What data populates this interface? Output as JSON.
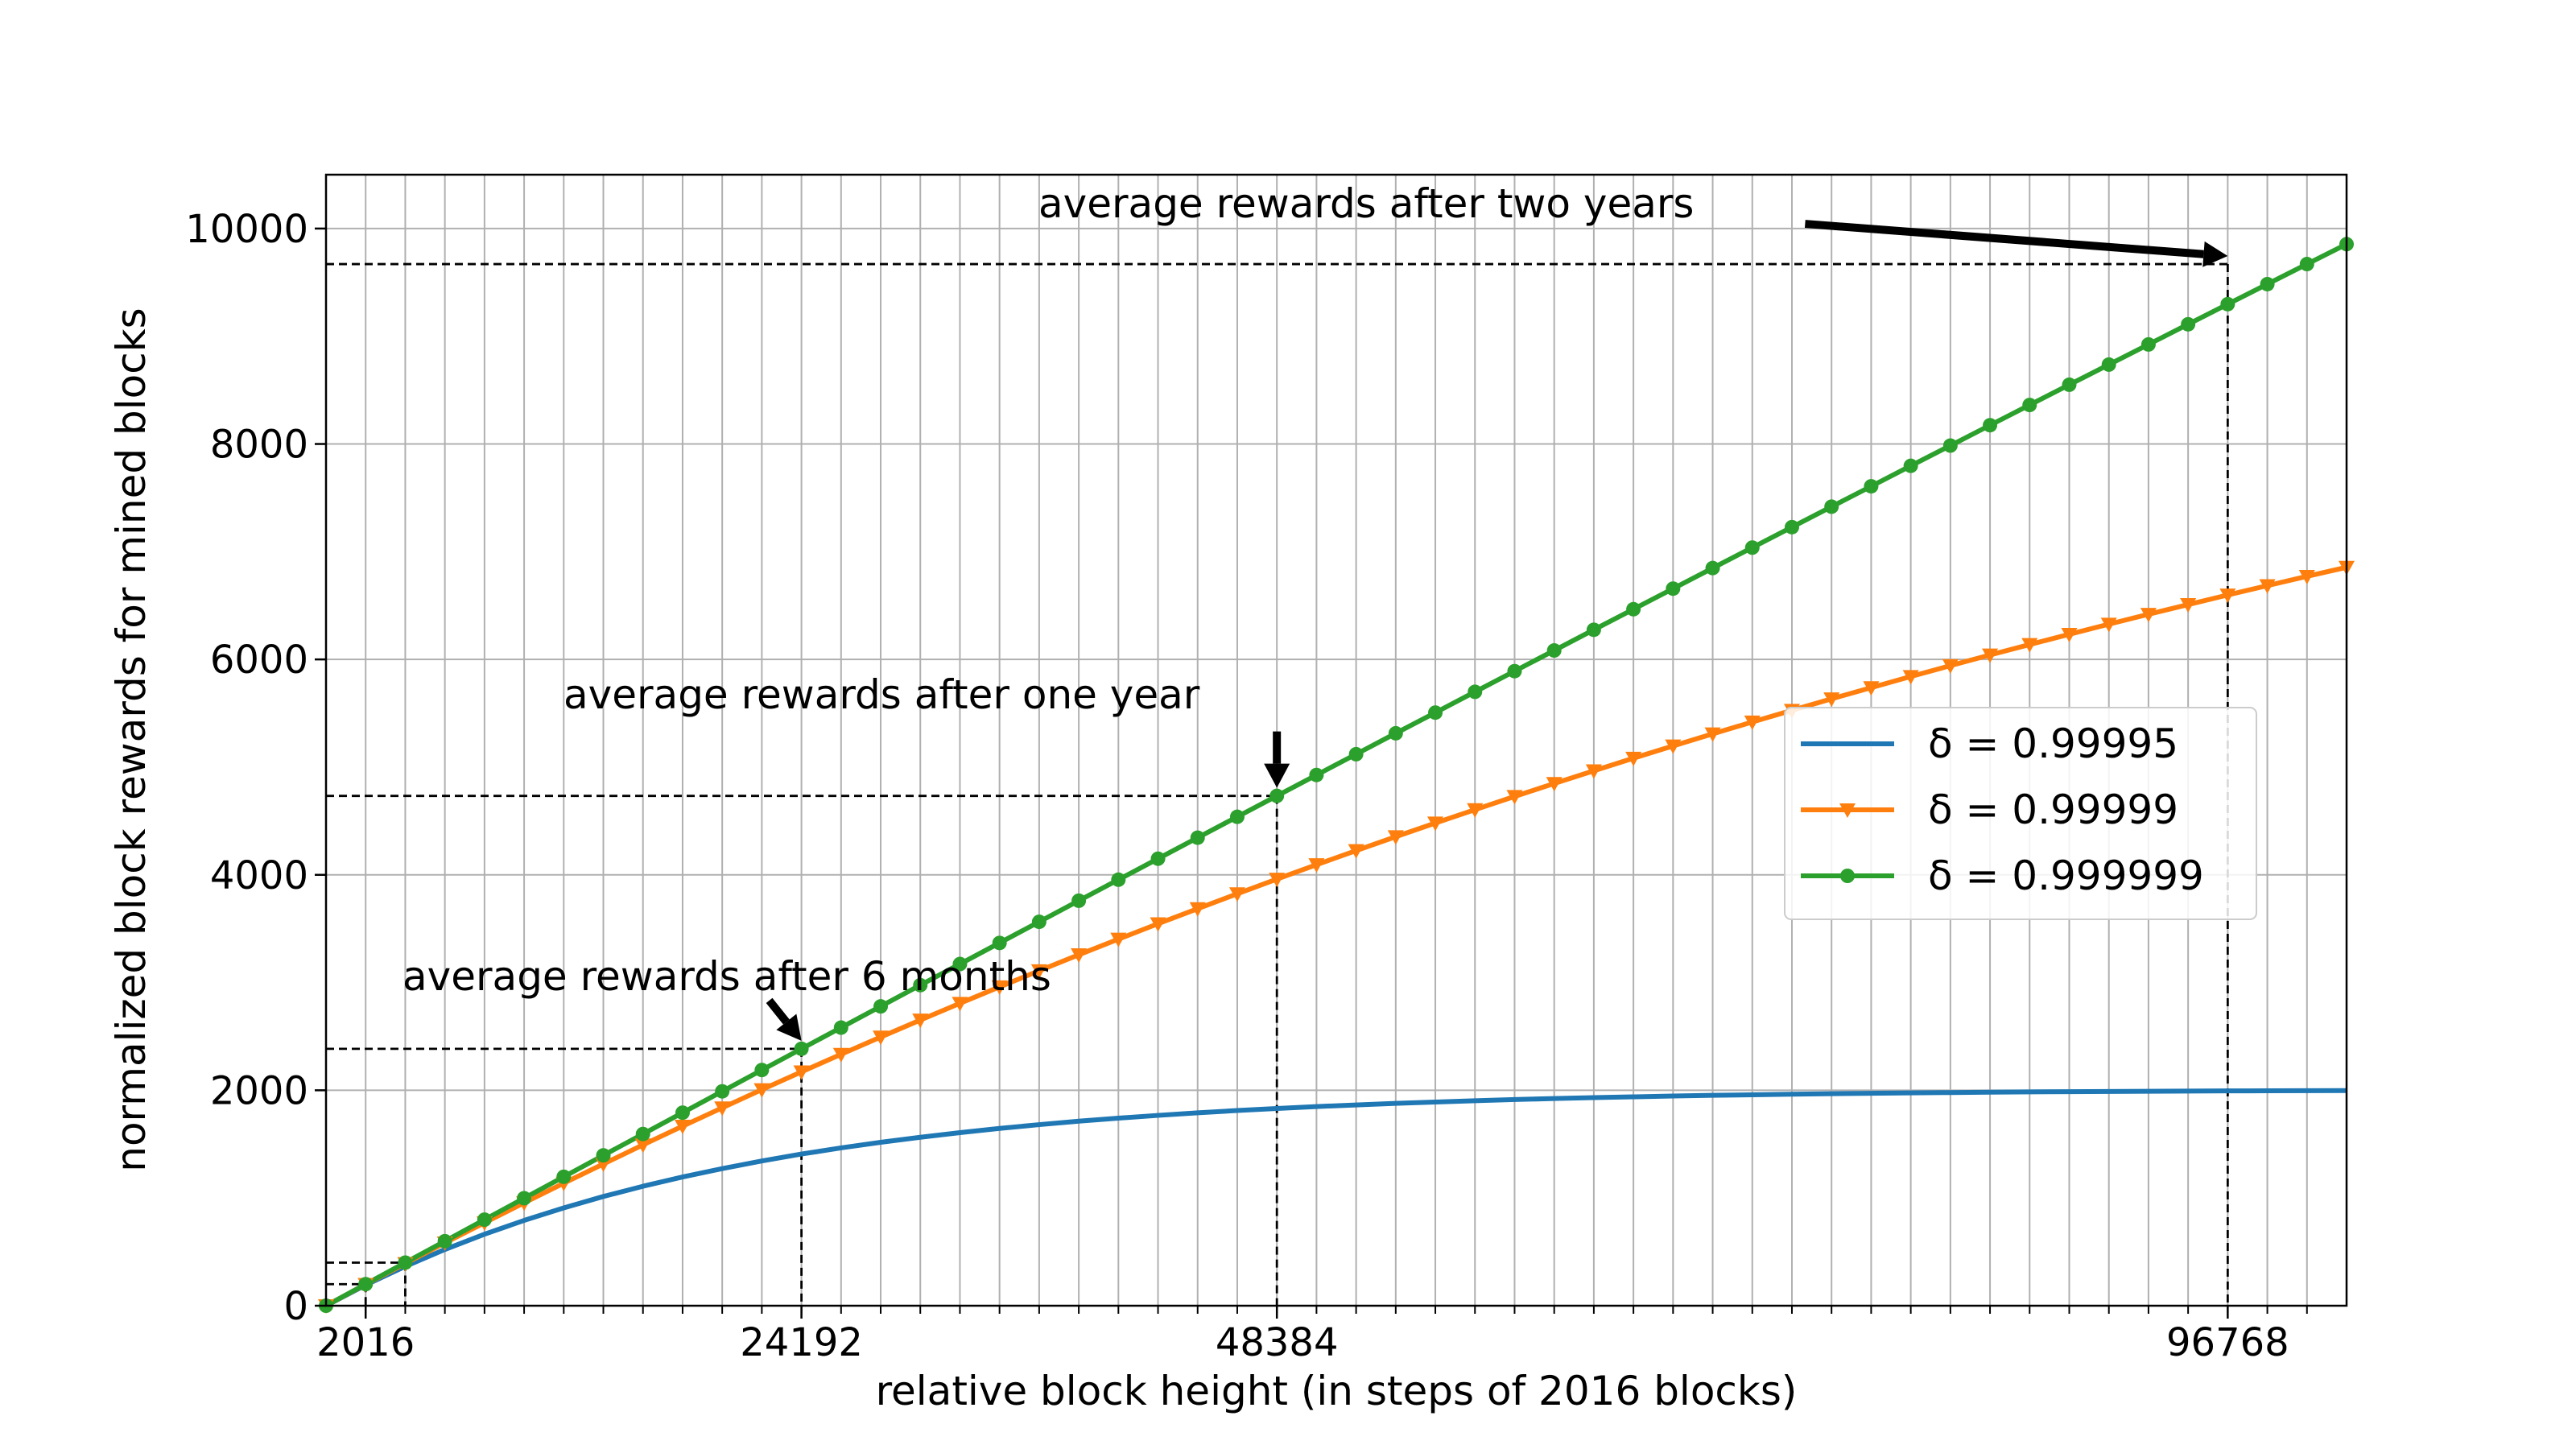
{
  "chart_data": {
    "type": "line",
    "xlabel": "relative block height (in steps of 2016 blocks)",
    "ylabel": "normalized block rewards for mined blocks",
    "xlim": [
      0,
      102816
    ],
    "ylim": [
      0,
      10500
    ],
    "x_tick_labels": [
      "2016",
      "24192",
      "48384",
      "96768"
    ],
    "x_tick_values": [
      2016,
      24192,
      48384,
      96768
    ],
    "y_ticks": [
      0,
      2000,
      4000,
      6000,
      8000,
      10000
    ],
    "x_minor_step": 2016,
    "grid": true,
    "legend_location": "center-right",
    "series": [
      {
        "name": "δ = 0.99995",
        "delta": 0.99995,
        "color": "#1f77b4",
        "marker": "none",
        "x": [
          0,
          2016,
          4032,
          6048,
          8064,
          10080,
          12096,
          14112,
          16128,
          18144,
          20160,
          22176,
          24192,
          26208,
          28224,
          30240,
          32256,
          34272,
          36288,
          38304,
          40320,
          42336,
          44352,
          46368,
          48384,
          50400,
          52416,
          54432,
          56448,
          58464,
          60480,
          62496,
          64512,
          66528,
          68544,
          70560,
          72576,
          74592,
          76608,
          78624,
          80640,
          82656,
          84672,
          86688,
          88704,
          90720,
          92736,
          94752,
          96768,
          98784,
          100800,
          102816
        ],
        "y": [
          0,
          192,
          365,
          522,
          664,
          792,
          908,
          1014,
          1109,
          1195,
          1273,
          1344,
          1408,
          1465,
          1517,
          1564,
          1607,
          1646,
          1681,
          1713,
          1741,
          1767,
          1791,
          1812,
          1831,
          1849,
          1864,
          1879,
          1891,
          1903,
          1914,
          1923,
          1932,
          1939,
          1947,
          1953,
          1958,
          1964,
          1968,
          1972,
          1976,
          1979,
          1982,
          1985,
          1987,
          1989,
          1991,
          1993,
          1994,
          1995,
          1996,
          1997
        ]
      },
      {
        "name": "δ = 0.99999",
        "delta": 0.99999,
        "color": "#ff7f0e",
        "marker": "triangle-down",
        "x": [
          0,
          2016,
          4032,
          6048,
          8064,
          10080,
          12096,
          14112,
          16128,
          18144,
          20160,
          22176,
          24192,
          26208,
          28224,
          30240,
          32256,
          34272,
          36288,
          38304,
          40320,
          42336,
          44352,
          46368,
          48384,
          50400,
          52416,
          54432,
          56448,
          58464,
          60480,
          62496,
          64512,
          66528,
          68544,
          70560,
          72576,
          74592,
          76608,
          78624,
          80640,
          82656,
          84672,
          86688,
          88704,
          90720,
          92736,
          94752,
          96768,
          98784,
          100800,
          102816
        ],
        "y": [
          0,
          198,
          391,
          583,
          770,
          955,
          1137,
          1316,
          1493,
          1667,
          1837,
          2006,
          2171,
          2334,
          2494,
          2652,
          2807,
          2960,
          3110,
          3258,
          3403,
          3546,
          3686,
          3824,
          3960,
          4094,
          4225,
          4354,
          4481,
          4605,
          4728,
          4848,
          4966,
          5083,
          5197,
          5309,
          5419,
          5527,
          5634,
          5738,
          5841,
          5942,
          6041,
          6138,
          6233,
          6327,
          6419,
          6509,
          6598,
          6685,
          6771,
          6855
        ]
      },
      {
        "name": "δ = 0.999999",
        "delta": 0.999999,
        "color": "#2ca02c",
        "marker": "circle",
        "x": [
          0,
          2016,
          4032,
          6048,
          8064,
          10080,
          12096,
          14112,
          16128,
          18144,
          20160,
          22176,
          24192,
          26208,
          28224,
          30240,
          32256,
          34272,
          36288,
          38304,
          40320,
          42336,
          44352,
          46368,
          48384,
          50400,
          52416,
          54432,
          56448,
          58464,
          60480,
          62496,
          64512,
          66528,
          68544,
          70560,
          72576,
          74592,
          76608,
          78624,
          80640,
          82656,
          84672,
          86688,
          88704,
          90720,
          92736,
          94752,
          96768,
          98784,
          100800,
          102816
        ],
        "y": [
          0,
          200,
          400,
          599,
          799,
          998,
          1197,
          1396,
          1594,
          1792,
          1990,
          2188,
          2385,
          2582,
          2779,
          2976,
          3172,
          3368,
          3564,
          3760,
          3955,
          4150,
          4345,
          4539,
          4733,
          4927,
          5120,
          5314,
          5506,
          5699,
          5891,
          6083,
          6275,
          6466,
          6657,
          6848,
          7038,
          7228,
          7418,
          7607,
          7797,
          7985,
          8174,
          8362,
          8550,
          8737,
          8924,
          9111,
          9298,
          9484,
          9670,
          9855
        ]
      }
    ],
    "annotations": [
      {
        "text": "average rewards after 6 months",
        "x": 24192,
        "y": 2385
      },
      {
        "text": "average rewards after one year",
        "x": 48384,
        "y": 4733
      },
      {
        "text": "average rewards after two years",
        "x": 96768,
        "y": 9670
      }
    ],
    "reference_markers": [
      {
        "x": 2016,
        "y": 200
      },
      {
        "x": 4032,
        "y": 400
      }
    ]
  }
}
